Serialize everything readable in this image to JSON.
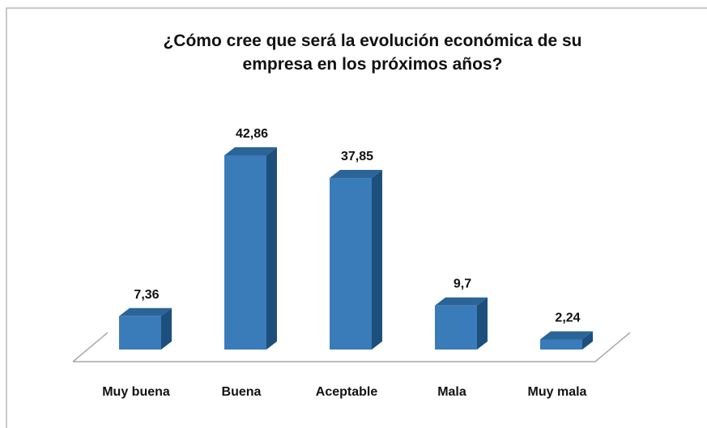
{
  "chart_data": {
    "type": "bar3d",
    "title": "¿Cómo cree que será la evolución económica de su empresa en los próximos años?",
    "categories": [
      "Muy buena",
      "Buena",
      "Aceptable",
      "Mala",
      "Muy mala"
    ],
    "values": [
      7.36,
      42.86,
      37.85,
      9.7,
      2.24
    ],
    "value_labels": [
      "7,36",
      "42,86",
      "37,85",
      "9,7",
      "2,24"
    ],
    "color": "#3a7cba"
  }
}
